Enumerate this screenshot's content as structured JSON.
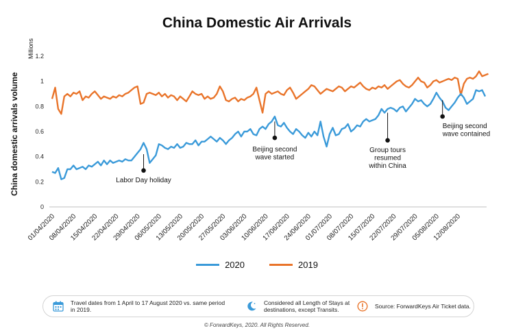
{
  "title": "China Domestic Air Arrivals",
  "chart_data": {
    "type": "line",
    "title": "China Domestic Air Arrivals",
    "ylabel": "China domestic arrivals volume",
    "yunits": "Millions",
    "ylim": [
      0,
      1.2
    ],
    "yticks": [
      "0",
      "0.2",
      "0.4",
      "0.6",
      "0.8",
      "1",
      "1.2"
    ],
    "x_start": "01/04/2020",
    "x_end": "17/08/2020",
    "xtick_labels": [
      "01/04/2020",
      "08/04/2020",
      "15/04/2020",
      "22/04/2020",
      "29/04/2020",
      "06/05/2020",
      "13/05/2020",
      "20/05/2020",
      "27/05/2020",
      "03/06/2020",
      "10/06/2020",
      "17/06/2020",
      "24/06/2020",
      "01/07/2020",
      "08/07/2020",
      "15/07/2020",
      "22/07/2020",
      "29/07/2020",
      "05/08/2020",
      "12/08/2020"
    ],
    "legend_position": "bottom",
    "series": [
      {
        "name": "2020",
        "color": "#3a9ad9",
        "values": [
          0.28,
          0.27,
          0.31,
          0.22,
          0.23,
          0.3,
          0.3,
          0.33,
          0.3,
          0.31,
          0.32,
          0.3,
          0.33,
          0.32,
          0.34,
          0.36,
          0.33,
          0.37,
          0.34,
          0.37,
          0.35,
          0.36,
          0.37,
          0.36,
          0.38,
          0.37,
          0.37,
          0.4,
          0.43,
          0.46,
          0.51,
          0.46,
          0.35,
          0.38,
          0.41,
          0.5,
          0.49,
          0.47,
          0.46,
          0.48,
          0.47,
          0.5,
          0.47,
          0.48,
          0.51,
          0.5,
          0.5,
          0.53,
          0.49,
          0.52,
          0.52,
          0.54,
          0.56,
          0.54,
          0.52,
          0.55,
          0.53,
          0.5,
          0.53,
          0.55,
          0.58,
          0.6,
          0.56,
          0.6,
          0.6,
          0.62,
          0.58,
          0.57,
          0.62,
          0.64,
          0.62,
          0.66,
          0.68,
          0.72,
          0.65,
          0.64,
          0.67,
          0.63,
          0.6,
          0.58,
          0.62,
          0.6,
          0.57,
          0.55,
          0.59,
          0.56,
          0.6,
          0.57,
          0.68,
          0.56,
          0.48,
          0.58,
          0.63,
          0.57,
          0.58,
          0.62,
          0.63,
          0.66,
          0.6,
          0.62,
          0.65,
          0.64,
          0.68,
          0.7,
          0.68,
          0.69,
          0.7,
          0.73,
          0.78,
          0.75,
          0.78,
          0.79,
          0.78,
          0.76,
          0.79,
          0.8,
          0.76,
          0.79,
          0.82,
          0.86,
          0.84,
          0.85,
          0.82,
          0.8,
          0.82,
          0.86,
          0.91,
          0.87,
          0.84,
          0.79,
          0.77,
          0.8,
          0.83,
          0.87,
          0.9,
          0.87,
          0.82,
          0.84,
          0.86,
          0.93,
          0.92,
          0.93,
          0.88
        ]
      },
      {
        "name": "2019",
        "color": "#e9742a",
        "values": [
          0.86,
          0.95,
          0.78,
          0.74,
          0.88,
          0.9,
          0.88,
          0.91,
          0.9,
          0.92,
          0.85,
          0.88,
          0.87,
          0.9,
          0.92,
          0.89,
          0.86,
          0.88,
          0.87,
          0.86,
          0.88,
          0.87,
          0.89,
          0.88,
          0.9,
          0.91,
          0.93,
          0.95,
          0.96,
          0.82,
          0.83,
          0.9,
          0.91,
          0.9,
          0.89,
          0.91,
          0.88,
          0.9,
          0.87,
          0.89,
          0.88,
          0.85,
          0.88,
          0.86,
          0.84,
          0.88,
          0.92,
          0.9,
          0.89,
          0.9,
          0.86,
          0.88,
          0.86,
          0.87,
          0.9,
          0.96,
          0.92,
          0.85,
          0.84,
          0.86,
          0.87,
          0.84,
          0.86,
          0.85,
          0.87,
          0.88,
          0.9,
          0.95,
          0.85,
          0.75,
          0.9,
          0.92,
          0.9,
          0.91,
          0.92,
          0.9,
          0.89,
          0.93,
          0.95,
          0.91,
          0.86,
          0.88,
          0.9,
          0.92,
          0.94,
          0.97,
          0.96,
          0.93,
          0.9,
          0.92,
          0.94,
          0.93,
          0.92,
          0.94,
          0.96,
          0.95,
          0.92,
          0.94,
          0.96,
          0.95,
          0.97,
          0.99,
          0.96,
          0.94,
          0.93,
          0.95,
          0.94,
          0.96,
          0.95,
          0.97,
          0.94,
          0.96,
          0.98,
          1.0,
          1.01,
          0.98,
          0.96,
          0.95,
          0.97,
          1.0,
          1.03,
          1.0,
          0.99,
          0.95,
          0.97,
          1.0,
          1.01,
          0.99,
          1.0,
          1.01,
          1.02,
          1.01,
          1.03,
          1.02,
          0.89,
          0.98,
          1.02,
          1.03,
          1.02,
          1.04,
          1.08,
          1.04,
          1.05,
          1.06
        ]
      }
    ],
    "annotations": [
      {
        "text": "Labor Day holiday",
        "date_index": 30,
        "y": 0.29,
        "line_from": 0.42
      },
      {
        "text": "Beijing second wave started",
        "date_index": 73,
        "y": 0.55,
        "line_from": 0.68
      },
      {
        "text": "Group tours resumed within China",
        "date_index": 110,
        "y": 0.53,
        "line_from": 0.75
      },
      {
        "text": "Beijing second wave contained",
        "date_index": 128,
        "y": 0.72,
        "line_from": 0.85
      }
    ]
  },
  "info": [
    {
      "icon": "calendar-icon",
      "text": "Travel dates from 1 April to 17 August 2020 vs. same period in 2019."
    },
    {
      "icon": "moon-icon",
      "text": "Considered all Length of Stays at destinations, except Transits."
    },
    {
      "icon": "exclamation-icon",
      "text": "Source: ForwardKeys Air Ticket data."
    }
  ],
  "footer": "© ForwardKeys, 2020. All Rights Reserved.",
  "colors": {
    "series_2020": "#3a9ad9",
    "series_2019": "#e9742a",
    "info_icon": "#3a9ad9",
    "alert_icon": "#e9742a"
  }
}
